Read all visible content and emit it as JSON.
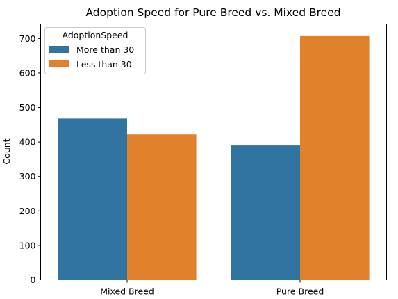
{
  "chart_data": {
    "type": "bar",
    "title": "Adoption Speed for Pure Breed vs. Mixed Breed",
    "xlabel": "",
    "ylabel": "Count",
    "categories": [
      "Mixed Breed",
      "Pure Breed"
    ],
    "series": [
      {
        "name": "More than 30",
        "color": "#3274a1",
        "values": [
          468,
          390
        ]
      },
      {
        "name": "Less than 30",
        "color": "#e1812c",
        "values": [
          422,
          707
        ]
      }
    ],
    "ylim": [
      0,
      742
    ],
    "yticks": [
      "0",
      "100",
      "200",
      "300",
      "400",
      "500",
      "600",
      "700"
    ],
    "legend": {
      "title": "AdoptionSpeed",
      "placement": "top-left"
    },
    "grid": false
  }
}
